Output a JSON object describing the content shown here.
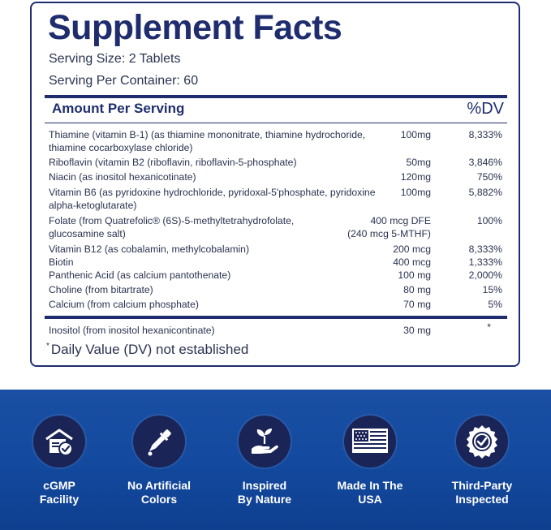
{
  "facts": {
    "title": "Supplement Facts",
    "serving_size": "Serving Size: 2 Tablets",
    "servings_per_container": "Serving Per Container: 60",
    "amount_header": "Amount Per Serving",
    "dv_header": "%DV",
    "nutrients": [
      {
        "name": "Thiamine (vitamin B-1) (as thiamine mononitrate, thiamine hydrochoride, thiamine cocarboxylase chloride)",
        "amount": "100mg",
        "dv": "8,333%"
      },
      {
        "name": "Riboflavin (vitamin B2 (riboflavin, riboflavin-5-phosphate)",
        "amount": "50mg",
        "dv": "3,846%"
      },
      {
        "name": "Niacin (as inositol hexanicotinate)",
        "amount": "120mg",
        "dv": "750%"
      },
      {
        "name": "Vitamin B6 (as pyridoxine hydrochloride, pyridoxal-5'phosphate, pyridoxine alpha-ketoglutarate)",
        "amount": "100mg",
        "dv": "5,882%"
      },
      {
        "name": "Folate (from Quatrefolic® (6S)-5-methyltetrahydrofolate, glucosamine salt)",
        "amount": "400 mcg DFE",
        "amount_line2": "(240 mcg 5-MTHF)",
        "dv": "100%"
      },
      {
        "name": "Vitamin B12 (as cobalamin, methylcobalamin)",
        "amount": "200 mcg",
        "dv": "8,333%"
      },
      {
        "name": "Biotin",
        "amount": "400 mcg",
        "dv": "1,333%"
      },
      {
        "name": "Panthenic Acid (as calcium pantothenate)",
        "amount": "100 mg",
        "dv": "2,000%"
      },
      {
        "name": "Choline (from bitartrate)",
        "amount": "80 mg",
        "dv": "15%"
      },
      {
        "name": "Calcium (from calcium phosphate)",
        "amount": "70 mg",
        "dv": "5%"
      }
    ],
    "other": {
      "name": "Inositol (from inositol hexanicontinate)",
      "amount": "30 mg",
      "dv": "*"
    },
    "footnote_mark": "*",
    "footnote": "Daily Value (DV) not established"
  },
  "badges": [
    {
      "line1": "cGMP",
      "line2": "Facility",
      "icon": "facility-check-icon"
    },
    {
      "line1": "No Artificial",
      "line2": "Colors",
      "icon": "dropper-icon"
    },
    {
      "line1": "Inspired",
      "line2": "By Nature",
      "icon": "plant-in-hand-icon"
    },
    {
      "line1": "Made In The",
      "line2": "USA",
      "icon": "usa-flag-icon"
    },
    {
      "line1": "Third-Party",
      "line2": "Inspected",
      "icon": "certified-seal-icon"
    }
  ],
  "colors": {
    "brand_navy": "#1f2d6e",
    "band_blue": "#134a9f",
    "badge_circle": "#1a2457"
  }
}
